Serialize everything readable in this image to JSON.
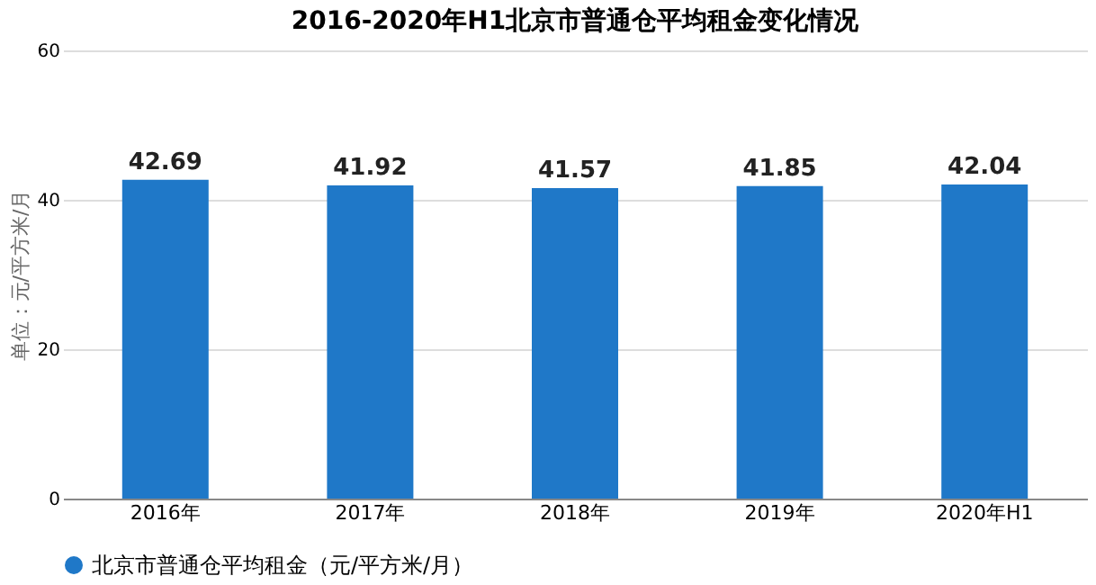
{
  "chart_data": {
    "type": "bar",
    "title": "2016-2020年H1北京市普通仓平均租金变化情况",
    "categories": [
      "2016年",
      "2017年",
      "2018年",
      "2019年",
      "2020年H1"
    ],
    "series": [
      {
        "name": "北京市普通仓平均租金（元/平方米/月）",
        "color": "#1f78c8",
        "values": [
          42.69,
          41.92,
          41.57,
          41.85,
          42.04
        ]
      }
    ],
    "ylabel": "单位：元/平方米/月",
    "ylim": [
      0,
      60
    ],
    "yticks": [
      0,
      20,
      40,
      60
    ],
    "grid": "y",
    "legend": "bottom",
    "data_labels": true
  }
}
